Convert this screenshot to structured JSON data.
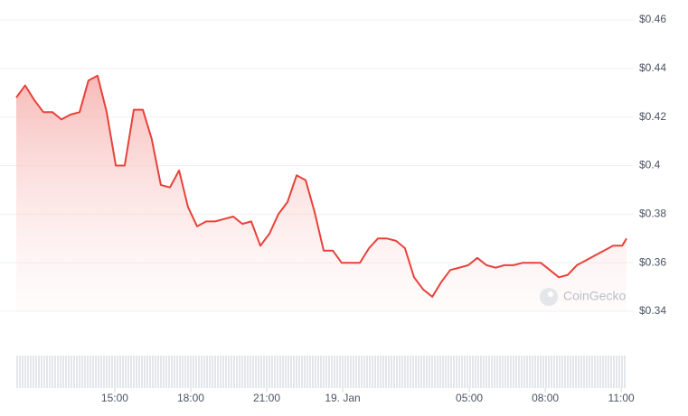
{
  "chart_data": {
    "type": "area",
    "watermark": "CoinGecko",
    "color": "#e8413a",
    "grid": true,
    "x": [
      11.11,
      11.46,
      11.82,
      12.18,
      12.54,
      12.89,
      13.25,
      13.61,
      13.96,
      14.32,
      14.68,
      15.04,
      15.39,
      15.75,
      16.11,
      16.46,
      16.82,
      17.18,
      17.54,
      17.89,
      18.25,
      18.61,
      18.96,
      19.32,
      19.68,
      20.04,
      20.39,
      20.75,
      21.11,
      21.46,
      21.82,
      22.18,
      22.54,
      22.89,
      23.25,
      23.61,
      23.96,
      24.32,
      24.68,
      25.04,
      25.39,
      25.75,
      26.11,
      26.46,
      26.82,
      27.18,
      27.54,
      27.89,
      28.25,
      28.61,
      28.96,
      29.32,
      29.68,
      30.04,
      30.39,
      30.75,
      31.11,
      31.46,
      31.82,
      32.18,
      32.54,
      32.89,
      33.25,
      33.61,
      33.96,
      34.32,
      34.68,
      35.04,
      35.21
    ],
    "values": [
      0.428,
      0.433,
      0.427,
      0.422,
      0.422,
      0.419,
      0.421,
      0.422,
      0.435,
      0.437,
      0.422,
      0.4,
      0.4,
      0.423,
      0.423,
      0.411,
      0.392,
      0.391,
      0.398,
      0.383,
      0.375,
      0.377,
      0.377,
      0.378,
      0.379,
      0.376,
      0.377,
      0.367,
      0.372,
      0.38,
      0.385,
      0.396,
      0.394,
      0.381,
      0.365,
      0.365,
      0.36,
      0.36,
      0.36,
      0.366,
      0.37,
      0.37,
      0.369,
      0.366,
      0.354,
      0.349,
      0.346,
      0.352,
      0.357,
      0.358,
      0.359,
      0.362,
      0.359,
      0.358,
      0.359,
      0.359,
      0.36,
      0.36,
      0.36,
      0.357,
      0.354,
      0.355,
      0.359,
      0.361,
      0.363,
      0.365,
      0.367,
      0.367,
      0.37
    ],
    "xlim": [
      11.11,
      35.21
    ],
    "xticks": [
      {
        "value": 15,
        "label": "15:00"
      },
      {
        "value": 18,
        "label": "18:00"
      },
      {
        "value": 21,
        "label": "21:00"
      },
      {
        "value": 24,
        "label": "19. Jan"
      },
      {
        "value": 29,
        "label": "05:00"
      },
      {
        "value": 32,
        "label": "08:00"
      },
      {
        "value": 35,
        "label": "11:00"
      }
    ],
    "ylim": [
      0.34,
      0.46
    ],
    "yticks": [
      {
        "value": 0.46,
        "label": "$0.46"
      },
      {
        "value": 0.44,
        "label": "$0.44"
      },
      {
        "value": 0.42,
        "label": "$0.42"
      },
      {
        "value": 0.4,
        "label": "$0.4"
      },
      {
        "value": 0.38,
        "label": "$0.38"
      },
      {
        "value": 0.36,
        "label": "$0.36"
      },
      {
        "value": 0.34,
        "label": "$0.34"
      }
    ]
  }
}
